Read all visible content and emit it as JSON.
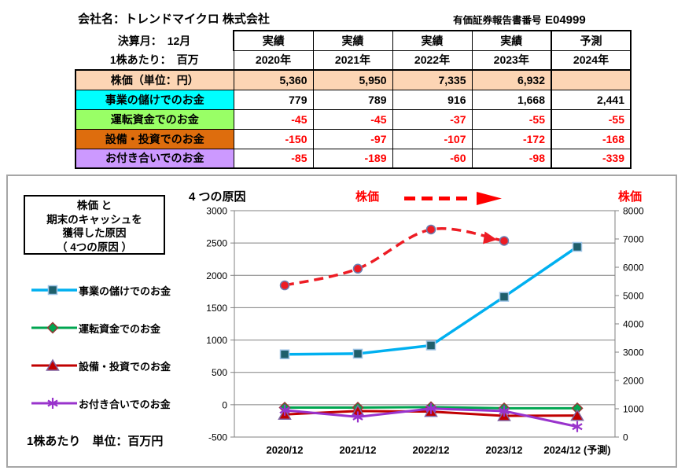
{
  "header": {
    "company_label": "会社名：トレンドマイクロ 株式会社",
    "report_label": "有価証券報告書番号",
    "report_number": "E04999",
    "fiscal_month_label": "決算月：　12月",
    "per_share_label": "1株あたり：　百万"
  },
  "table": {
    "column_types": [
      "実績",
      "実績",
      "実績",
      "実績",
      "予測"
    ],
    "years": [
      "2020年",
      "2021年",
      "2022年",
      "2023年",
      "2024年"
    ],
    "negative_color": "#FF0000",
    "rows": [
      {
        "label": "株価（単位：円）",
        "row_color": "#FCD5B4",
        "fill_values": true,
        "values": [
          "5,360",
          "5,950",
          "7,335",
          "6,932",
          ""
        ]
      },
      {
        "label": "事業の儲けでのお金",
        "row_color": "#00FFFF",
        "fill_values": false,
        "values": [
          "779",
          "789",
          "916",
          "1,668",
          "2,441"
        ]
      },
      {
        "label": "運転資金でのお金",
        "row_color": "#99FF66",
        "fill_values": false,
        "values": [
          "-45",
          "-45",
          "-37",
          "-55",
          "-55"
        ]
      },
      {
        "label": "設備・投資でのお金",
        "row_color": "#DE6D0D",
        "fill_values": false,
        "values": [
          "-150",
          "-97",
          "-107",
          "-172",
          "-168"
        ]
      },
      {
        "label": "お付き合いでのお金",
        "row_color": "#CC99FF",
        "fill_values": false,
        "values": [
          "-85",
          "-189",
          "-60",
          "-98",
          "-339"
        ]
      }
    ]
  },
  "panel": {
    "info_box_lines": [
      "株価 と",
      "期末のキャッシュを",
      "獲得した原因",
      "（ 4つの原因 ）"
    ],
    "chart_title": "4 つの原因",
    "price_label_mid": "株価",
    "price_label_right": "株価",
    "price_color": "#FF0000",
    "unit_note": "1株あたり　単位：百万円"
  },
  "chart_data": {
    "type": "line",
    "title": "4 つの原因",
    "categories": [
      "2020/12",
      "2021/12",
      "2022/12",
      "2023/12",
      "2024/12 (予測)"
    ],
    "left_axis": {
      "min": -500,
      "max": 3000,
      "step": 500
    },
    "right_axis": {
      "min": 0,
      "max": 8000,
      "step": 1000
    },
    "grid": true,
    "legend_position": "left",
    "series": [
      {
        "name": "事業の儲けでのお金",
        "axis": "left",
        "color": "#00B0F0",
        "width": 3.5,
        "marker": "square",
        "marker_fill": "#1F5F6B",
        "marker_stroke": "#9DC3E6",
        "values": [
          779,
          789,
          916,
          1668,
          2441
        ]
      },
      {
        "name": "運転資金でのお金",
        "axis": "left",
        "color": "#00A550",
        "width": 3,
        "marker": "diamond",
        "marker_fill": "#00A550",
        "marker_stroke": "#963634",
        "values": [
          -45,
          -45,
          -37,
          -55,
          -55
        ]
      },
      {
        "name": "設備・投資でのお金",
        "axis": "left",
        "color": "#C00000",
        "width": 3,
        "marker": "triangle",
        "marker_fill": "#C00000",
        "marker_stroke": "#8064A2",
        "values": [
          -150,
          -97,
          -107,
          -172,
          -168
        ]
      },
      {
        "name": "お付き合いでのお金",
        "axis": "left",
        "color": "#9933CC",
        "width": 3,
        "marker": "star",
        "marker_fill": "#9933CC",
        "marker_stroke": "#9933CC",
        "values": [
          -85,
          -189,
          -60,
          -98,
          -339
        ]
      },
      {
        "name": "株価",
        "axis": "right",
        "color": "#ED1C24",
        "width": 3.5,
        "dashed": true,
        "smooth": true,
        "arrow_end": true,
        "marker": "circle",
        "marker_fill": "#ED1C24",
        "marker_stroke": "#6A7FB2",
        "values": [
          5360,
          5950,
          7335,
          6932,
          null
        ]
      }
    ]
  }
}
